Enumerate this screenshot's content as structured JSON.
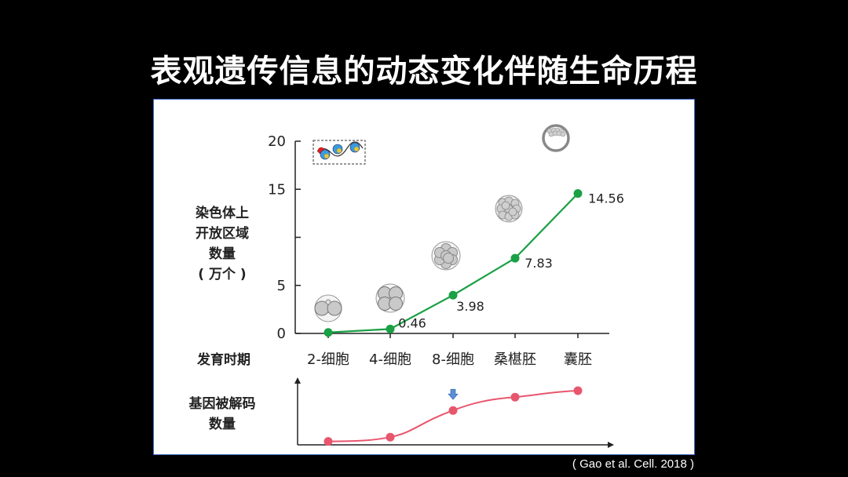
{
  "title": "表观遗传信息的动态变化伴随生命历程",
  "citation": "( Gao et al. Cell. 2018 )",
  "colors": {
    "background": "#000000",
    "panel_border": "#3b6bc5",
    "top_series": "#1aa045",
    "bottom_series": "#e8566e",
    "arrow": "#5b8fd6"
  },
  "chart_data": [
    {
      "type": "line",
      "ylabel_lines": [
        "染色体上",
        "开放区域",
        "数量",
        "( 万个 )"
      ],
      "xlabel": "发育时期",
      "categories": [
        "2-细胞",
        "4-细胞",
        "8-细胞",
        "桑椹胚",
        "囊胚"
      ],
      "values": [
        0.1,
        0.46,
        3.98,
        7.83,
        14.56
      ],
      "data_labels": [
        "",
        "0.46",
        "3.98",
        "7.83",
        "14.56"
      ],
      "ylim": [
        0,
        20
      ],
      "yticks": [
        0,
        5,
        10,
        15,
        20
      ],
      "yticklabels": [
        "0",
        "5",
        "",
        "15",
        "20"
      ],
      "line_color": "#1aa045",
      "stage_icons": [
        "two-cell-embryo-icon",
        "four-cell-embryo-icon",
        "eight-cell-embryo-icon",
        "morula-icon",
        "blastocyst-icon"
      ],
      "inset_icon": "chromatin-nucleosome-icon"
    },
    {
      "type": "line",
      "ylabel_lines": [
        "基因被解码",
        "数量"
      ],
      "values": [
        0.02,
        0.1,
        0.6,
        0.85,
        0.97
      ],
      "ylim": [
        0,
        1
      ],
      "line_color": "#e8566e",
      "marker_icon": "down-arrow-icon",
      "marker_at_index": 2
    }
  ]
}
